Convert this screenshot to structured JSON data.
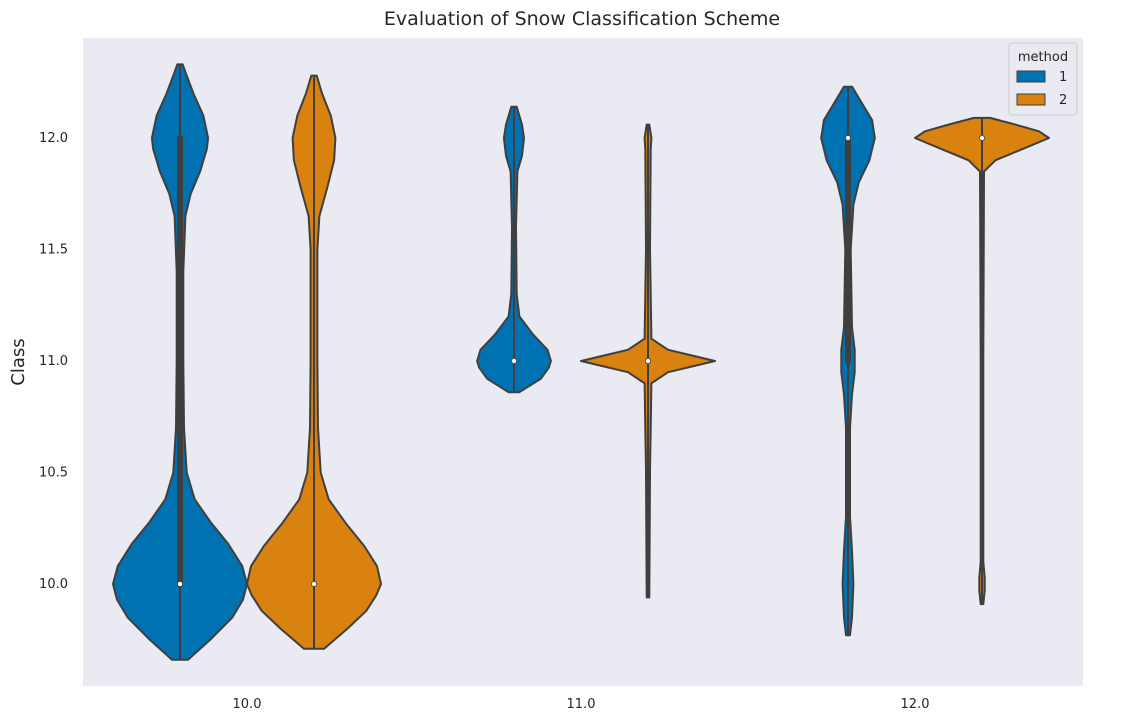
{
  "chart_data": {
    "type": "violin",
    "title": "Evaluation of Snow Classification Scheme",
    "xlabel": "",
    "ylabel": "Class",
    "categories": [
      "10.0",
      "11.0",
      "12.0"
    ],
    "yticks": [
      "10.0",
      "10.5",
      "11.0",
      "11.5",
      "12.0"
    ],
    "ylim": [
      9.6,
      12.45
    ],
    "grid": false,
    "legend": {
      "title": "method",
      "placement": "top-right",
      "entries": [
        "1",
        "2"
      ]
    },
    "colors": {
      "1": "#0072b2",
      "2": "#d9820f",
      "background": "#eaeaf2",
      "outline": "#3f3f3f"
    },
    "series": [
      {
        "name": "1",
        "violins": [
          {
            "category": "10.0",
            "min": 9.66,
            "max": 12.33,
            "median": 10.0,
            "q1": 10.0,
            "q3": 12.0,
            "density": [
              [
                9.66,
                0.12
              ],
              [
                9.75,
                0.45
              ],
              [
                9.85,
                0.78
              ],
              [
                9.93,
                0.94
              ],
              [
                10.0,
                1.0
              ],
              [
                10.08,
                0.93
              ],
              [
                10.18,
                0.72
              ],
              [
                10.28,
                0.45
              ],
              [
                10.38,
                0.22
              ],
              [
                10.5,
                0.1
              ],
              [
                10.7,
                0.06
              ],
              [
                11.0,
                0.05
              ],
              [
                11.4,
                0.05
              ],
              [
                11.65,
                0.08
              ],
              [
                11.75,
                0.16
              ],
              [
                11.85,
                0.3
              ],
              [
                11.95,
                0.4
              ],
              [
                12.0,
                0.42
              ],
              [
                12.1,
                0.35
              ],
              [
                12.2,
                0.2
              ],
              [
                12.28,
                0.1
              ],
              [
                12.33,
                0.04
              ]
            ]
          },
          {
            "category": "11.0",
            "min": 10.86,
            "max": 12.14,
            "median": 11.0,
            "q1": 11.0,
            "q3": 11.0,
            "density": [
              [
                10.86,
                0.08
              ],
              [
                10.92,
                0.4
              ],
              [
                10.97,
                0.52
              ],
              [
                11.0,
                0.55
              ],
              [
                11.05,
                0.5
              ],
              [
                11.12,
                0.28
              ],
              [
                11.2,
                0.08
              ],
              [
                11.3,
                0.04
              ],
              [
                11.6,
                0.03
              ],
              [
                11.85,
                0.05
              ],
              [
                11.92,
                0.12
              ],
              [
                12.0,
                0.15
              ],
              [
                12.06,
                0.12
              ],
              [
                12.14,
                0.04
              ]
            ]
          },
          {
            "category": "12.0",
            "min": 9.77,
            "max": 12.23,
            "median": 12.0,
            "q1": 11.0,
            "q3": 12.0,
            "density": [
              [
                9.77,
                0.03
              ],
              [
                9.85,
                0.06
              ],
              [
                10.0,
                0.08
              ],
              [
                10.15,
                0.06
              ],
              [
                10.3,
                0.03
              ],
              [
                10.7,
                0.03
              ],
              [
                10.85,
                0.06
              ],
              [
                10.95,
                0.1
              ],
              [
                11.05,
                0.1
              ],
              [
                11.15,
                0.06
              ],
              [
                11.5,
                0.04
              ],
              [
                11.7,
                0.08
              ],
              [
                11.8,
                0.16
              ],
              [
                11.9,
                0.32
              ],
              [
                12.0,
                0.4
              ],
              [
                12.08,
                0.36
              ],
              [
                12.16,
                0.2
              ],
              [
                12.23,
                0.06
              ]
            ]
          }
        ]
      },
      {
        "name": "2",
        "violins": [
          {
            "category": "10.0",
            "min": 9.71,
            "max": 12.28,
            "median": 10.0,
            "q1": 10.0,
            "q3": 10.0,
            "density": [
              [
                9.71,
                0.15
              ],
              [
                9.8,
                0.5
              ],
              [
                9.88,
                0.78
              ],
              [
                9.95,
                0.93
              ],
              [
                10.0,
                1.0
              ],
              [
                10.08,
                0.94
              ],
              [
                10.17,
                0.75
              ],
              [
                10.27,
                0.48
              ],
              [
                10.38,
                0.22
              ],
              [
                10.5,
                0.1
              ],
              [
                10.7,
                0.06
              ],
              [
                11.0,
                0.05
              ],
              [
                11.5,
                0.05
              ],
              [
                11.65,
                0.08
              ],
              [
                11.78,
                0.2
              ],
              [
                11.9,
                0.3
              ],
              [
                12.0,
                0.32
              ],
              [
                12.1,
                0.25
              ],
              [
                12.2,
                0.12
              ],
              [
                12.28,
                0.04
              ]
            ]
          },
          {
            "category": "11.0",
            "min": 9.94,
            "max": 12.06,
            "median": 11.0,
            "q1": 11.0,
            "q3": 11.0,
            "density": [
              [
                9.94,
                0.02
              ],
              [
                10.5,
                0.03
              ],
              [
                10.9,
                0.05
              ],
              [
                10.95,
                0.3
              ],
              [
                10.98,
                0.72
              ],
              [
                11.0,
                1.0
              ],
              [
                11.02,
                0.72
              ],
              [
                11.05,
                0.3
              ],
              [
                11.1,
                0.05
              ],
              [
                11.5,
                0.03
              ],
              [
                11.95,
                0.04
              ],
              [
                12.0,
                0.05
              ],
              [
                12.06,
                0.02
              ]
            ]
          },
          {
            "category": "12.0",
            "min": 9.91,
            "max": 12.09,
            "median": 12.0,
            "q1": 12.0,
            "q3": 12.0,
            "density": [
              [
                9.91,
                0.02
              ],
              [
                9.97,
                0.04
              ],
              [
                10.03,
                0.04
              ],
              [
                10.1,
                0.02
              ],
              [
                11.0,
                0.02
              ],
              [
                11.85,
                0.03
              ],
              [
                11.9,
                0.2
              ],
              [
                11.95,
                0.6
              ],
              [
                12.0,
                1.0
              ],
              [
                12.03,
                0.85
              ],
              [
                12.06,
                0.5
              ],
              [
                12.09,
                0.12
              ]
            ]
          }
        ]
      }
    ]
  }
}
